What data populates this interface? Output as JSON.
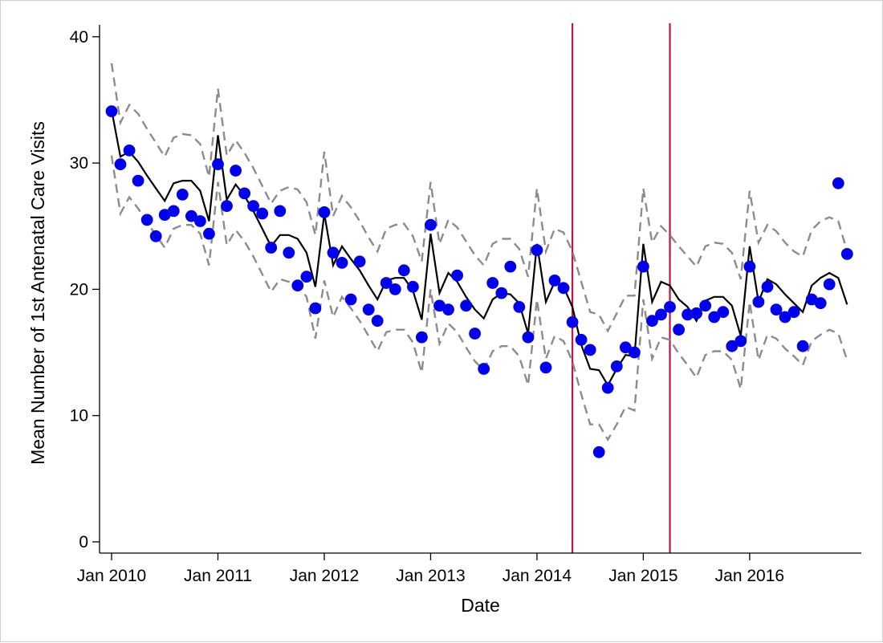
{
  "chart_data": {
    "type": "scatter",
    "title": "",
    "xlabel": "Date",
    "ylabel": "Mean Number of 1st Antenatal Care Visits",
    "ylim": [
      0,
      41
    ],
    "yticks": [
      0,
      10,
      20,
      30,
      40
    ],
    "xticks": [
      {
        "date": "2010-01",
        "label": "Jan 2010"
      },
      {
        "date": "2011-01",
        "label": "Jan 2011"
      },
      {
        "date": "2012-01",
        "label": "Jan 2012"
      },
      {
        "date": "2013-01",
        "label": "Jan 2013"
      },
      {
        "date": "2014-01",
        "label": "Jan 2014"
      },
      {
        "date": "2015-01",
        "label": "Jan 2015"
      },
      {
        "date": "2016-01",
        "label": "Jan 2016"
      }
    ],
    "x_dates": [
      "2010-01",
      "2010-02",
      "2010-03",
      "2010-04",
      "2010-05",
      "2010-06",
      "2010-07",
      "2010-08",
      "2010-09",
      "2010-10",
      "2010-11",
      "2010-12",
      "2011-01",
      "2011-02",
      "2011-03",
      "2011-04",
      "2011-05",
      "2011-06",
      "2011-07",
      "2011-08",
      "2011-09",
      "2011-10",
      "2011-11",
      "2011-12",
      "2012-01",
      "2012-02",
      "2012-03",
      "2012-04",
      "2012-05",
      "2012-06",
      "2012-07",
      "2012-08",
      "2012-09",
      "2012-10",
      "2012-11",
      "2012-12",
      "2013-01",
      "2013-02",
      "2013-03",
      "2013-04",
      "2013-05",
      "2013-06",
      "2013-07",
      "2013-08",
      "2013-09",
      "2013-10",
      "2013-11",
      "2013-12",
      "2014-01",
      "2014-02",
      "2014-03",
      "2014-04",
      "2014-05",
      "2014-06",
      "2014-07",
      "2014-08",
      "2014-09",
      "2014-10",
      "2014-11",
      "2014-12",
      "2015-01",
      "2015-02",
      "2015-03",
      "2015-04",
      "2015-05",
      "2015-06",
      "2015-07",
      "2015-08",
      "2015-09",
      "2015-10",
      "2015-11",
      "2015-12",
      "2016-01",
      "2016-02",
      "2016-03",
      "2016-04",
      "2016-05",
      "2016-06",
      "2016-07",
      "2016-08",
      "2016-09",
      "2016-10",
      "2016-11",
      "2016-12"
    ],
    "series": [
      {
        "role": "observed",
        "style": "markers",
        "color": "#0000ee",
        "values": [
          34.1,
          29.9,
          31.0,
          28.6,
          25.5,
          24.2,
          25.9,
          26.2,
          27.5,
          25.8,
          25.4,
          24.4,
          29.9,
          26.6,
          29.4,
          27.6,
          26.6,
          26.0,
          23.3,
          26.2,
          22.9,
          20.3,
          21.0,
          18.5,
          26.1,
          22.9,
          22.1,
          19.2,
          22.2,
          18.4,
          17.5,
          20.5,
          20.0,
          21.5,
          20.2,
          16.2,
          25.1,
          18.7,
          18.4,
          21.1,
          18.7,
          16.5,
          13.7,
          20.5,
          19.7,
          21.8,
          18.6,
          16.2,
          23.1,
          13.8,
          20.7,
          20.1,
          17.4,
          16.0,
          15.2,
          7.1,
          12.2,
          13.9,
          15.4,
          15.0,
          21.8,
          17.5,
          18.0,
          18.6,
          16.8,
          18.0,
          18.1,
          18.7,
          17.8,
          18.2,
          15.5,
          15.9,
          21.8,
          19.0,
          20.2,
          18.4,
          17.8,
          18.2,
          15.5,
          19.2,
          18.9,
          20.4,
          28.4,
          22.8
        ]
      },
      {
        "role": "fitted",
        "style": "solid",
        "color": "#000000",
        "values": [
          34.2,
          30.5,
          30.9,
          30.1,
          29.0,
          28.0,
          27.0,
          28.4,
          28.6,
          28.6,
          27.8,
          25.4,
          32.2,
          27.1,
          28.3,
          27.4,
          26.2,
          24.8,
          23.4,
          24.3,
          24.3,
          24.0,
          22.9,
          20.2,
          26.0,
          21.9,
          23.4,
          22.4,
          21.5,
          20.3,
          19.2,
          20.7,
          20.9,
          20.9,
          19.9,
          17.6,
          24.4,
          19.7,
          21.3,
          20.6,
          19.4,
          18.4,
          17.7,
          19.2,
          19.7,
          19.6,
          18.9,
          16.5,
          23.6,
          19.0,
          20.6,
          20.2,
          18.6,
          15.6,
          13.7,
          13.6,
          12.4,
          13.7,
          14.8,
          14.7,
          23.6,
          19.0,
          20.6,
          20.3,
          19.2,
          18.6,
          17.5,
          19.1,
          19.4,
          19.4,
          18.7,
          16.3,
          23.4,
          19.0,
          20.8,
          20.4,
          19.6,
          18.9,
          18.2,
          20.3,
          20.9,
          21.3,
          20.9,
          18.8
        ]
      },
      {
        "role": "upper-ci",
        "style": "dashed",
        "color": "#8c8c8c",
        "values": [
          37.9,
          33.2,
          34.6,
          33.9,
          32.7,
          31.6,
          30.5,
          32.0,
          32.3,
          32.2,
          31.5,
          28.9,
          35.9,
          30.6,
          31.8,
          30.8,
          29.6,
          28.2,
          26.8,
          27.8,
          28.1,
          27.9,
          26.9,
          24.3,
          30.9,
          25.8,
          27.4,
          26.5,
          25.4,
          24.1,
          23.0,
          24.8,
          25.1,
          25.2,
          24.2,
          22.2,
          28.5,
          23.6,
          25.5,
          24.9,
          23.8,
          22.7,
          21.9,
          23.6,
          24.0,
          24.0,
          23.2,
          21.0,
          28.0,
          23.0,
          24.8,
          24.5,
          23.0,
          20.6,
          18.2,
          18.0,
          16.7,
          18.1,
          19.5,
          19.5,
          28.0,
          23.7,
          25.0,
          24.3,
          23.4,
          22.6,
          21.8,
          23.4,
          23.7,
          23.6,
          22.9,
          20.8,
          27.8,
          23.7,
          25.1,
          24.6,
          23.7,
          23.0,
          22.6,
          24.7,
          25.4,
          25.7,
          25.4,
          23.0
        ]
      },
      {
        "role": "lower-ci",
        "style": "dashed",
        "color": "#8c8c8c",
        "values": [
          30.6,
          26.0,
          27.3,
          26.4,
          25.3,
          24.3,
          23.3,
          24.8,
          25.1,
          25.1,
          24.4,
          21.9,
          28.5,
          23.5,
          24.7,
          23.8,
          22.6,
          21.2,
          19.8,
          20.8,
          20.6,
          20.3,
          19.4,
          16.1,
          20.7,
          17.8,
          19.4,
          18.5,
          17.5,
          16.3,
          15.1,
          16.6,
          16.8,
          16.8,
          15.8,
          13.4,
          20.0,
          15.7,
          17.3,
          16.6,
          15.4,
          14.3,
          13.6,
          15.1,
          15.5,
          15.5,
          14.7,
          12.4,
          19.2,
          14.5,
          16.3,
          15.9,
          14.3,
          11.7,
          9.3,
          9.3,
          8.1,
          9.3,
          10.7,
          10.4,
          19.2,
          14.5,
          16.2,
          16.0,
          14.9,
          14.0,
          13.0,
          14.8,
          15.1,
          15.1,
          14.4,
          12.1,
          19.0,
          14.4,
          16.4,
          16.1,
          15.3,
          14.7,
          14.0,
          15.9,
          16.4,
          16.8,
          16.5,
          14.4
        ]
      }
    ],
    "vertical_markers": [
      {
        "date": "2014-05",
        "color": "#c0134a"
      },
      {
        "date": "2015-04",
        "color": "#c0134a"
      }
    ],
    "grid": false,
    "legend": "none"
  }
}
